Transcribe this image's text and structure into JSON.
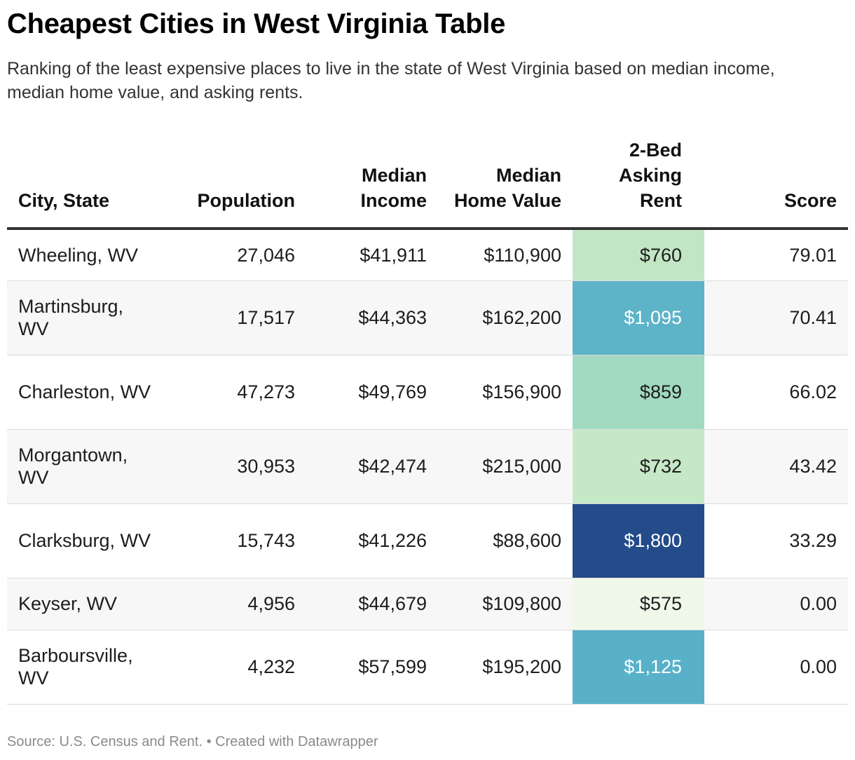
{
  "title": "Cheapest Cities in West Virginia Table",
  "subtitle": "Ranking of the least expensive places to live in the state of West Virginia based on median income, median home value, and asking rents.",
  "footer": "Source: U.S. Census and Rent. • Created with Datawrapper",
  "chart_data": {
    "type": "table",
    "columns": [
      "City, State",
      "Population",
      "Median Income",
      "Median Home Value",
      "2-Bed Asking Rent",
      "Score"
    ],
    "rows": [
      {
        "city": "Wheeling, WV",
        "population": "27,046",
        "income": "$41,911",
        "home": "$110,900",
        "rent": "$760",
        "score": "79.01",
        "rent_bg": "#c2e6c4",
        "rent_fg": "#1d1d1d"
      },
      {
        "city": "Martinsburg, WV",
        "population": "17,517",
        "income": "$44,363",
        "home": "$162,200",
        "rent": "$1,095",
        "score": "70.41",
        "rent_bg": "#5db3c7",
        "rent_fg": "#ffffff"
      },
      {
        "city": "Charleston, WV",
        "population": "47,273",
        "income": "$49,769",
        "home": "$156,900",
        "rent": "$859",
        "score": "66.02",
        "rent_bg": "#a2d9c1",
        "rent_fg": "#1d1d1d"
      },
      {
        "city": "Morgantown, WV",
        "population": "30,953",
        "income": "$42,474",
        "home": "$215,000",
        "rent": "$732",
        "score": "43.42",
        "rent_bg": "#c6e8c6",
        "rent_fg": "#1d1d1d"
      },
      {
        "city": "Clarksburg, WV",
        "population": "15,743",
        "income": "$41,226",
        "home": "$88,600",
        "rent": "$1,800",
        "score": "33.29",
        "rent_bg": "#244b8a",
        "rent_fg": "#ffffff"
      },
      {
        "city": "Keyser, WV",
        "population": "4,956",
        "income": "$44,679",
        "home": "$109,800",
        "rent": "$575",
        "score": "0.00",
        "rent_bg": "#f0f8ea",
        "rent_fg": "#1d1d1d"
      },
      {
        "city": "Barboursville, WV",
        "population": "4,232",
        "income": "$57,599",
        "home": "$195,200",
        "rent": "$1,125",
        "score": "0.00",
        "rent_bg": "#58b1c9",
        "rent_fg": "#ffffff"
      }
    ]
  }
}
